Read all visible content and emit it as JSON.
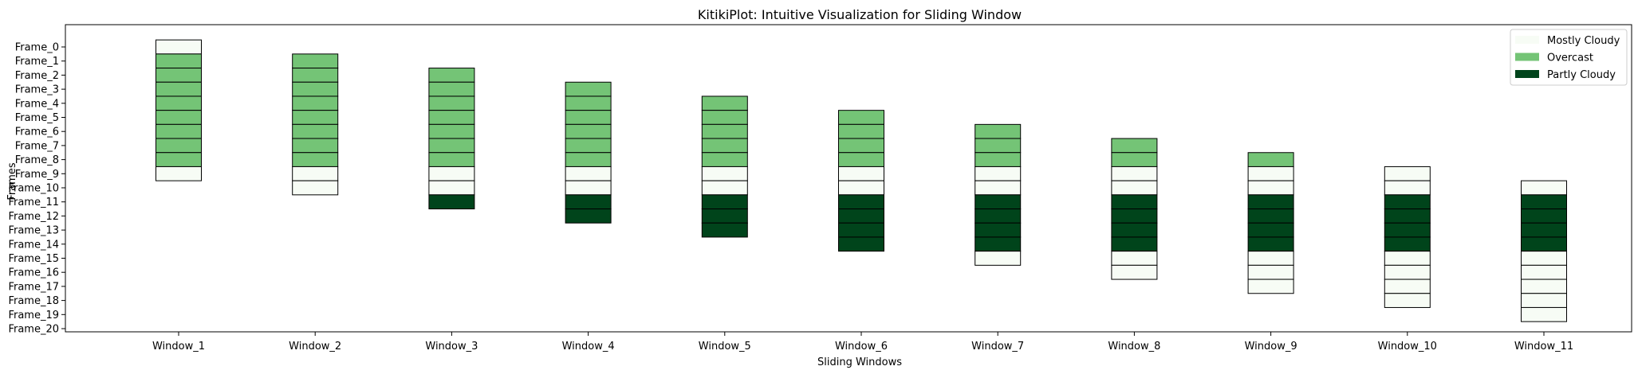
{
  "chart_data": {
    "type": "kitikiplot",
    "title": "KitikiPlot: Intuitive Visualization for Sliding Window",
    "xlabel": "Sliding Windows",
    "ylabel": "Frames",
    "x_categories": [
      "Window_1",
      "Window_2",
      "Window_3",
      "Window_4",
      "Window_5",
      "Window_6",
      "Window_7",
      "Window_8",
      "Window_9",
      "Window_10",
      "Window_11"
    ],
    "y_categories": [
      "Frame_0",
      "Frame_1",
      "Frame_2",
      "Frame_3",
      "Frame_4",
      "Frame_5",
      "Frame_6",
      "Frame_7",
      "Frame_8",
      "Frame_9",
      "Frame_10",
      "Frame_11",
      "Frame_12",
      "Frame_13",
      "Frame_14",
      "Frame_15",
      "Frame_16",
      "Frame_17",
      "Frame_18",
      "Frame_19",
      "Frame_20"
    ],
    "window_length": 10,
    "step": 1,
    "frame_sequence": [
      "Mostly Cloudy",
      "Overcast",
      "Overcast",
      "Overcast",
      "Overcast",
      "Overcast",
      "Overcast",
      "Overcast",
      "Overcast",
      "Mostly Cloudy",
      "Mostly Cloudy",
      "Partly Cloudy",
      "Partly Cloudy",
      "Partly Cloudy",
      "Partly Cloudy",
      "Mostly Cloudy",
      "Mostly Cloudy",
      "Mostly Cloudy",
      "Mostly Cloudy",
      "Mostly Cloudy"
    ],
    "legend": {
      "position": "top-right",
      "entries": [
        {
          "name": "Mostly Cloudy",
          "color": "#f7fcf5"
        },
        {
          "name": "Overcast",
          "color": "#74c476"
        },
        {
          "name": "Partly Cloudy",
          "color": "#00441b"
        }
      ]
    },
    "edge_color": "#000000",
    "grid": false
  }
}
